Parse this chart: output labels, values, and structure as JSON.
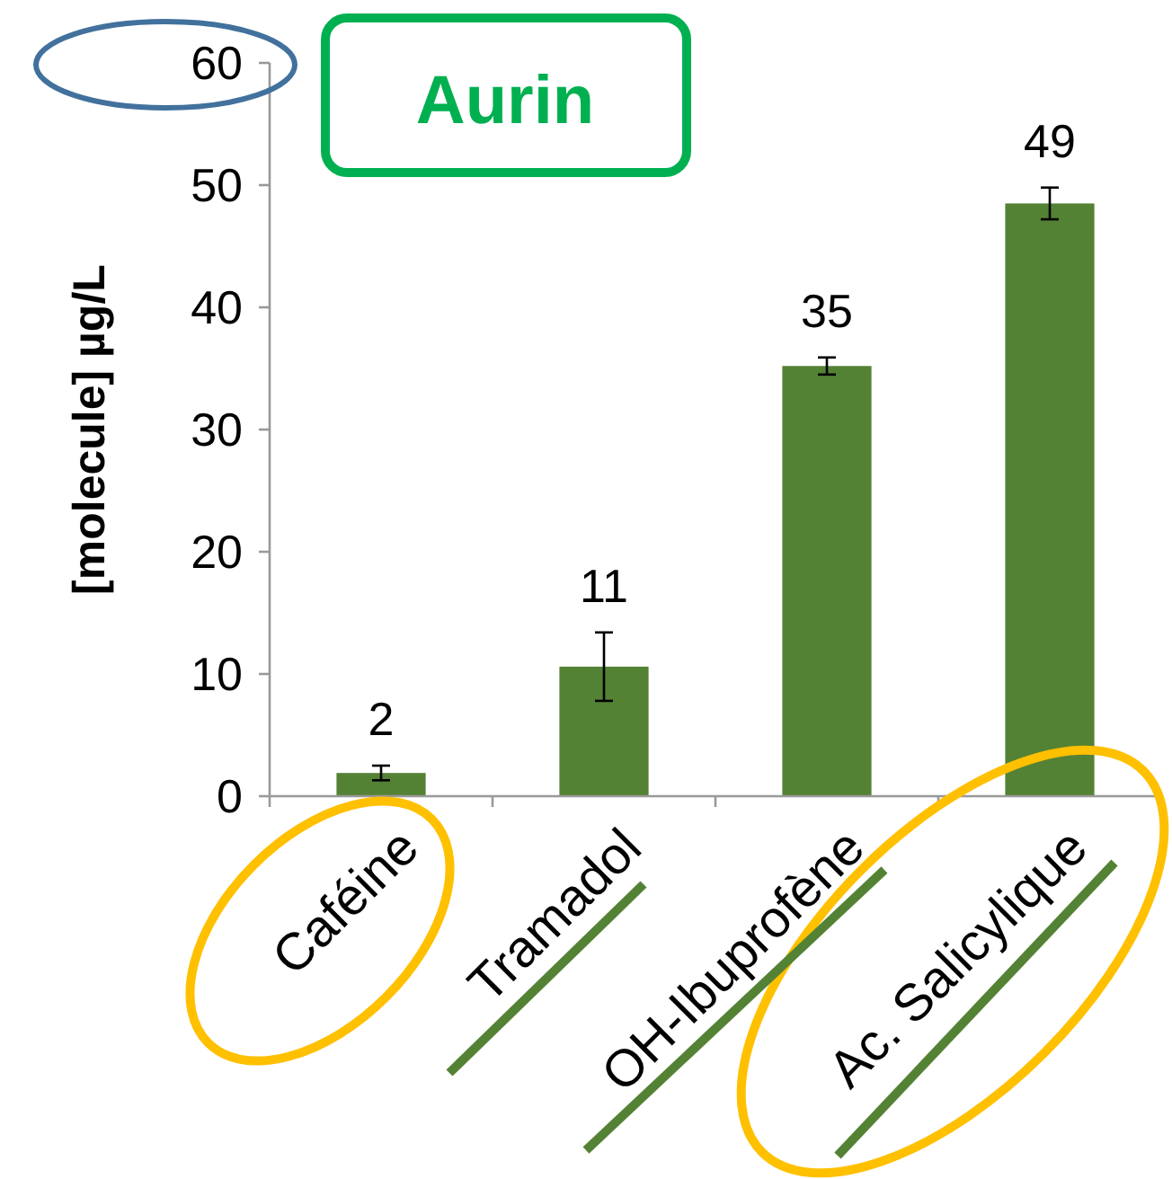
{
  "chart_data": {
    "type": "bar",
    "title": "Aurin",
    "ylabel": "[molecule] µg/L",
    "categories": [
      "Caféine",
      "Tramadol",
      "OH-Ibuprofène",
      "Ac. Salicylique"
    ],
    "values": [
      1.9,
      10.6,
      35.2,
      48.5
    ],
    "errors": [
      0.6,
      2.8,
      0.7,
      1.3
    ],
    "value_labels": [
      "2",
      "11",
      "35",
      "49"
    ],
    "color": "#548235",
    "ylim": [
      0,
      60
    ],
    "yticks": [
      0,
      10,
      20,
      30,
      40,
      50,
      60
    ],
    "grid": false
  }
}
